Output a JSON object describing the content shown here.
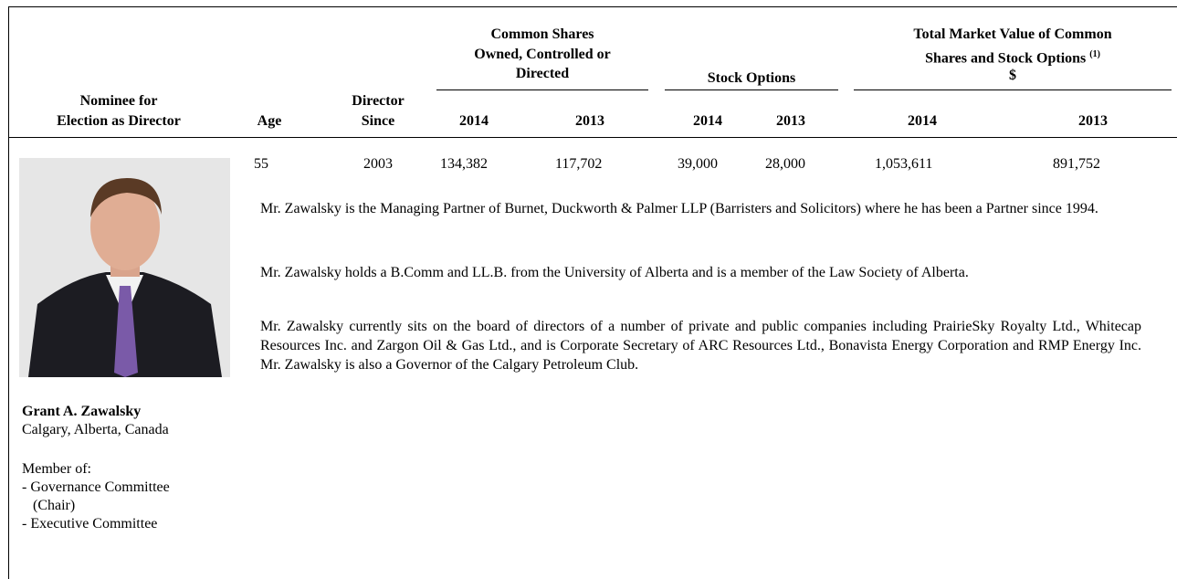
{
  "table": {
    "headers": {
      "nominee": [
        "Nominee for",
        "Election as Director"
      ],
      "age": "Age",
      "director_since": [
        "Director",
        "Since"
      ],
      "common_shares": [
        "Common Shares",
        "Owned, Controlled or",
        "Directed"
      ],
      "stock_options": "Stock Options",
      "market_value": [
        "Total Market Value of Common",
        "Shares and Stock Options",
        "$"
      ],
      "market_value_note": "(1)",
      "years": [
        "2014",
        "2013",
        "2014",
        "2013",
        "2014",
        "2013"
      ]
    },
    "row": {
      "age": "55",
      "director_since": "2003",
      "values": [
        "134,382",
        "117,702",
        "39,000",
        "28,000",
        "1,053,611",
        "891,752"
      ]
    },
    "nominee": {
      "name": "Grant A. Zawalsky",
      "location": "Calgary, Alberta, Canada",
      "member_of": "Member of:",
      "committees": [
        "- Governance Committee",
        "(Chair)",
        "- Executive Committee"
      ]
    },
    "paragraphs": [
      "Mr. Zawalsky is the Managing Partner of Burnet, Duckworth & Palmer LLP (Barristers and Solicitors) where he has been a Partner since 1994.",
      "Mr. Zawalsky holds a B.Comm and LL.B. from the University of Alberta and is a member of the Law Society of Alberta.",
      "Mr. Zawalsky currently sits on the board of directors of a number of private and public companies including PrairieSky Royalty Ltd., Whitecap Resources Inc. and Zargon Oil & Gas Ltd., and is Corporate Secretary of ARC Resources Ltd., Bonavista Energy Corporation and RMP Energy Inc. Mr. Zawalsky is also a Governor of the Calgary Petroleum Club."
    ]
  }
}
